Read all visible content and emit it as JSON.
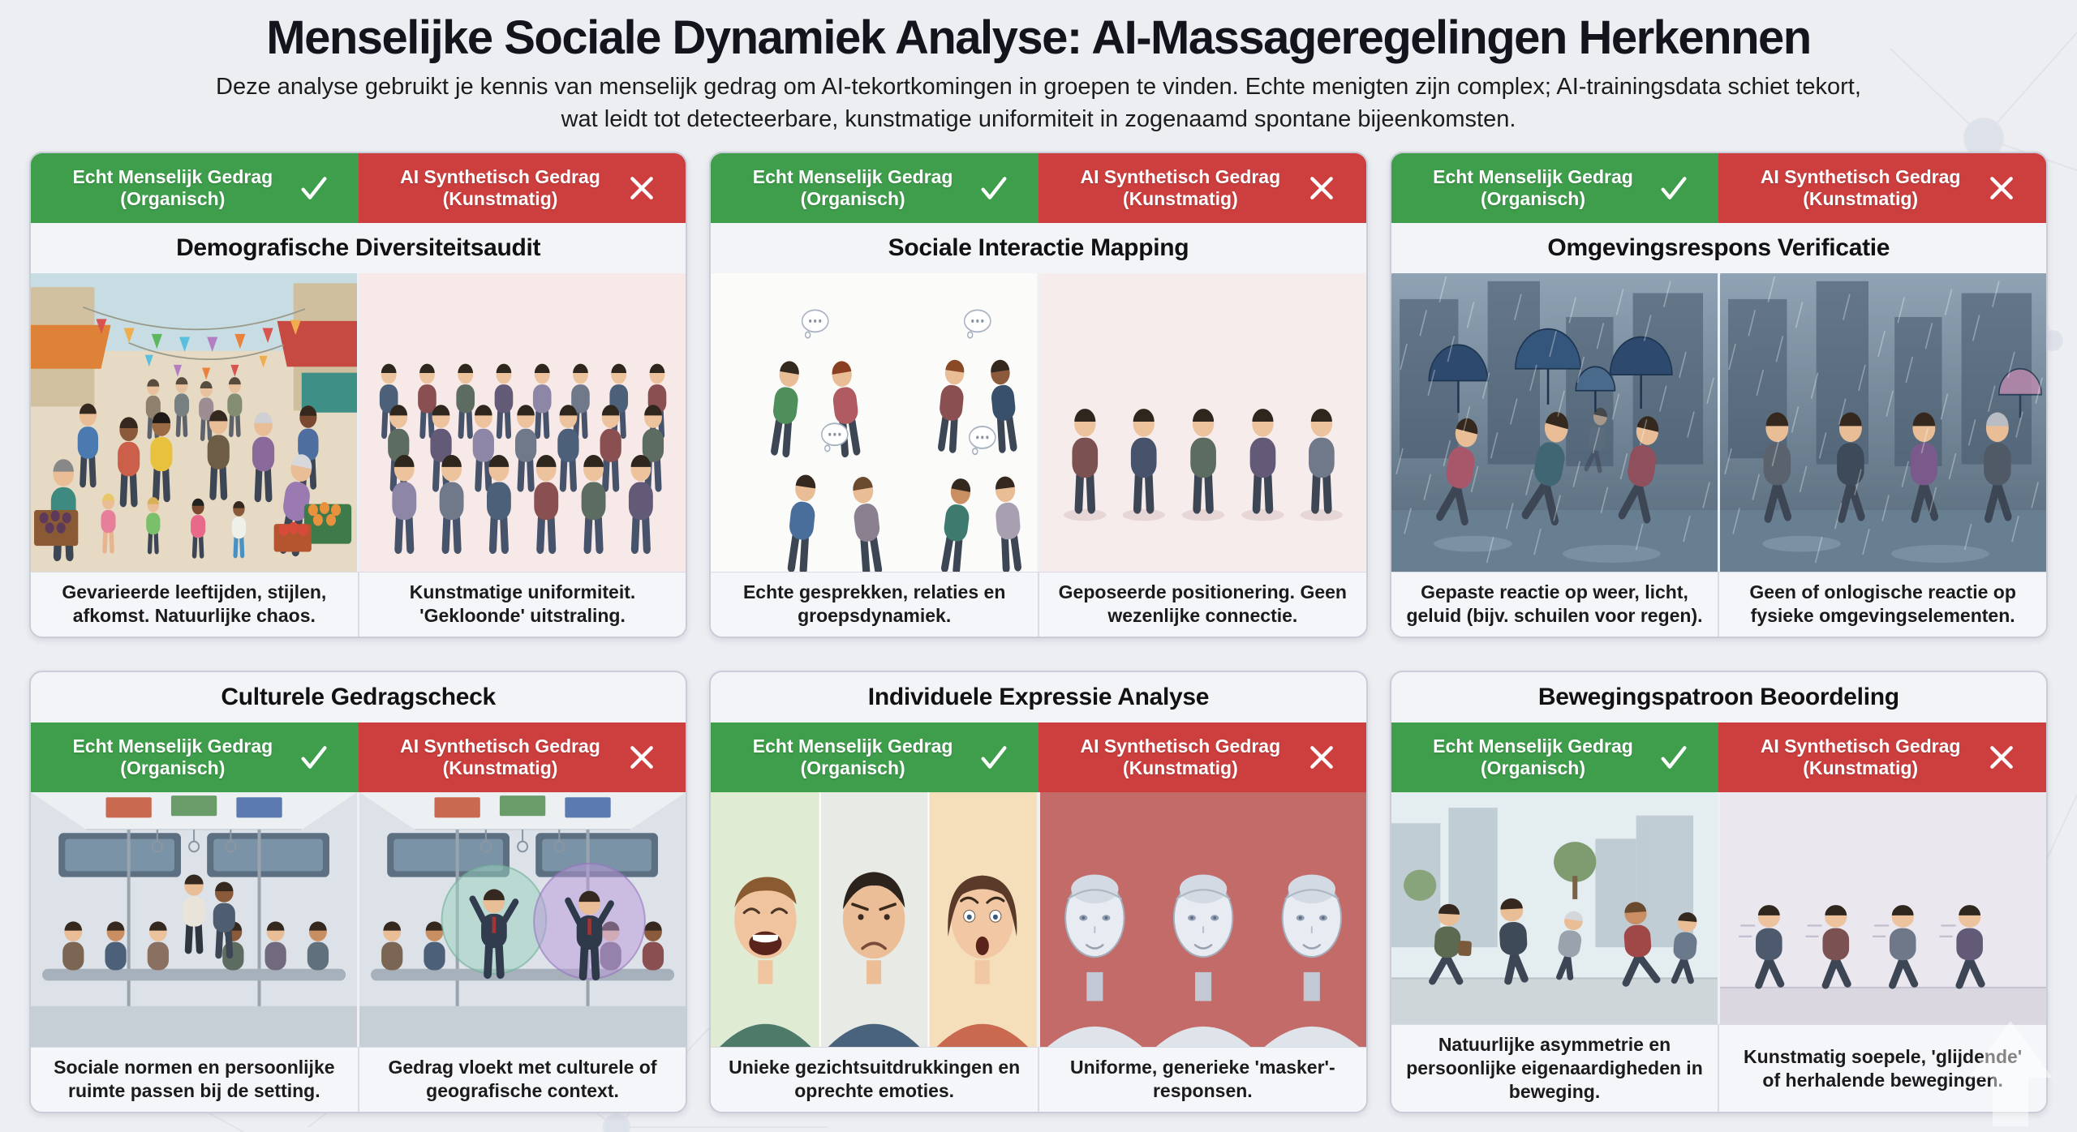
{
  "page": {
    "title": "Menselijke Sociale Dynamiek Analyse: AI-Massageregelingen Herkennen",
    "subtitle_line1": "Deze analyse gebruikt je kennis van menselijk gedrag om AI-tekortkomingen in groepen te vinden. Echte menigten zijn complex; AI-trainingsdata schiet tekort,",
    "subtitle_line2": "wat leidt tot detecteerbare, kunstmatige uniformiteit in zogenaamd spontane bijeenkomsten."
  },
  "labels": {
    "real": "Echt Menselijk Gedrag (Organisch)",
    "ai": "AI Synthetisch Gedrag (Kunstmatig)",
    "real_icon": "check-icon",
    "ai_icon": "x-icon"
  },
  "colors": {
    "real_green": "#3f9e4c",
    "ai_red": "#cd3f3f"
  },
  "cards": [
    {
      "title": "Demografische Diversiteitsaudit",
      "real": {
        "caption": "Gevarieerde leeftijden, stijlen, afkomst. Natuurlijke chaos.",
        "illustration": "market-crowd"
      },
      "ai": {
        "caption": "Kunstmatige uniformiteit. 'Gekloonde' uitstraling.",
        "illustration": "clone-crowd"
      }
    },
    {
      "title": "Sociale Interactie Mapping",
      "real": {
        "caption": "Echte gesprekken, relaties en groepsdynamiek.",
        "illustration": "conversation-groups"
      },
      "ai": {
        "caption": "Geposeerde positionering. Geen wezenlijke connectie.",
        "illustration": "posed-crowd"
      }
    },
    {
      "title": "Omgevingsrespons Verificatie",
      "real": {
        "caption": "Gepaste reactie op weer, licht, geluid (bijv. schuilen voor regen).",
        "illustration": "rain-sheltering-crowd"
      },
      "ai": {
        "caption": "Geen of onlogische reactie op fysieke omgevingselementen.",
        "illustration": "rain-ignoring-crowd"
      }
    },
    {
      "title": "Culturele Gedragscheck",
      "real": {
        "caption": "Sociale normen en persoonlijke ruimte passen bij de setting.",
        "illustration": "subway-etiquette-crowd"
      },
      "ai": {
        "caption": "Gedrag vloekt met culturele of geografische context.",
        "illustration": "subway-clashing-behavior"
      }
    },
    {
      "title": "Individuele Expressie Analyse",
      "real": {
        "caption": "Unieke gezichtsuitdrukkingen en oprechte emoties.",
        "illustration": "expressive-faces"
      },
      "ai": {
        "caption": "Uniforme, generieke 'masker'-responsen.",
        "illustration": "identical-android-faces"
      }
    },
    {
      "title": "Bewegingspatroon Beoordeling",
      "real": {
        "caption": "Natuurlijke asymmetrie en persoonlijke eigenaardigheden in beweging.",
        "illustration": "natural-walking-crowd"
      },
      "ai": {
        "caption": "Kunstmatig soepele, 'glijdende' of herhalende bewegingen.",
        "illustration": "synthetic-gliding-crowd"
      }
    }
  ]
}
